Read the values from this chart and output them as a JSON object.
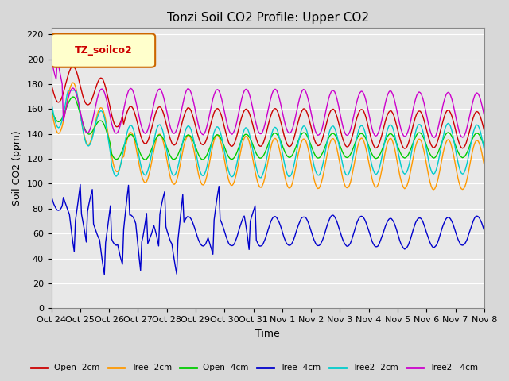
{
  "title": "Tonzi Soil CO2 Profile: Upper CO2",
  "xlabel": "Time",
  "ylabel": "Soil CO2 (ppm)",
  "ylim": [
    0,
    225
  ],
  "yticks": [
    0,
    20,
    40,
    60,
    80,
    100,
    120,
    140,
    160,
    180,
    200,
    220
  ],
  "background_color": "#e8e8e8",
  "plot_bg_color": "#e8e8e8",
  "legend_label": "TZ_soilco2",
  "legend_box_color": "#ffffcc",
  "legend_box_border": "#cc6600",
  "series": {
    "Open_2cm": {
      "color": "#cc0000",
      "label": "Open -2cm"
    },
    "Tree_2cm": {
      "color": "#ff9900",
      "label": "Tree -2cm"
    },
    "Open_4cm": {
      "color": "#00cc00",
      "label": "Open -4cm"
    },
    "Tree_4cm": {
      "color": "#0000cc",
      "label": "Tree -4cm"
    },
    "Tree2_2cm": {
      "color": "#00cccc",
      "label": "Tree2 -2cm"
    },
    "Tree2_4cm": {
      "color": "#cc00cc",
      "label": "Tree2 - 4cm"
    }
  },
  "xtick_labels": [
    "Oct 24",
    "Oct 25",
    "Oct 26",
    "Oct 27",
    "Oct 28",
    "Oct 29",
    "Oct 30",
    "Oct 31",
    "Nov 1",
    "Nov 2",
    "Nov 3",
    "Nov 4",
    "Nov 5",
    "Nov 6",
    "Nov 7",
    "Nov 8"
  ],
  "n_points": 360
}
